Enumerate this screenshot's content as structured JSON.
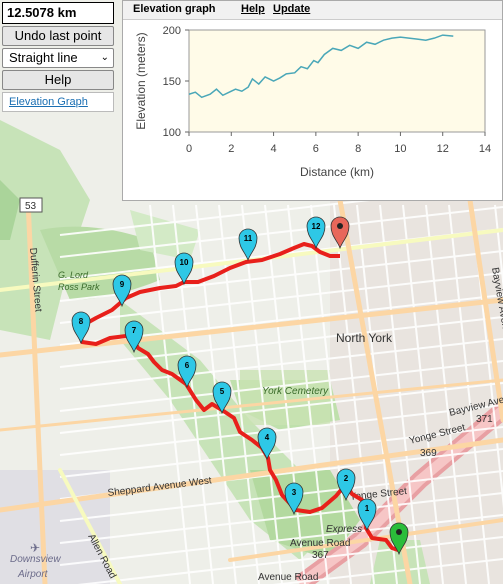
{
  "controls": {
    "distance": "12.5078 km",
    "undo_label": "Undo last point",
    "mode_value": "Straight line",
    "help_label": "Help",
    "elevation_link": "Elevation Graph"
  },
  "panel": {
    "title": "Elevation graph",
    "help_link": "Help",
    "update_link": "Update"
  },
  "map_labels": {
    "north_york": "North York",
    "york_cemetery": "York Cemetery",
    "yonge_street_1": "Yonge Street",
    "yonge_street_2": "Yonge Street",
    "route_369": "369",
    "bayview_avenue": "Bayview Avenue",
    "route_371": "371",
    "bayview_avenue_2": "Bayview Avenue",
    "dufferin": "Dufferin Street",
    "route_53": "53",
    "g_lord_ross_park": "G. Lord\nRoss Park",
    "sheppard": "Sheppard Avenue West",
    "allen_road": "Allen Road",
    "express": "Express",
    "avenue_road_367": "Avenue Road\n367",
    "avenue_road": "Avenue Road",
    "downsview_airport": "Downsview\nAirport"
  },
  "markers": [
    "1",
    "2",
    "3",
    "4",
    "5",
    "6",
    "7",
    "8",
    "9",
    "10",
    "11",
    "12"
  ],
  "colors": {
    "route": "#e8201b",
    "marker_cyan": "#2ec8e6",
    "marker_start": "#2bbd3a",
    "marker_end": "#e8675a",
    "elevation_line": "#4aa7b8"
  },
  "chart_data": {
    "type": "line",
    "xlabel": "Distance (km)",
    "ylabel": "Elevation (meters)",
    "xlim": [
      0,
      14
    ],
    "ylim": [
      100,
      200
    ],
    "xticks": [
      0,
      2,
      4,
      6,
      8,
      10,
      12,
      14
    ],
    "yticks": [
      100,
      150,
      200
    ],
    "x": [
      0.0,
      0.3,
      0.6,
      1.0,
      1.3,
      1.6,
      2.0,
      2.2,
      2.5,
      2.8,
      3.0,
      3.3,
      3.6,
      4.0,
      4.3,
      4.6,
      5.0,
      5.3,
      5.6,
      5.9,
      6.1,
      6.4,
      6.8,
      7.2,
      7.6,
      8.0,
      8.4,
      8.8,
      9.2,
      9.6,
      10.0,
      10.4,
      10.8,
      11.2,
      11.6,
      12.0,
      12.5
    ],
    "y": [
      137,
      139,
      134,
      137,
      142,
      136,
      140,
      142,
      140,
      144,
      152,
      147,
      154,
      150,
      153,
      157,
      158,
      164,
      162,
      170,
      168,
      176,
      182,
      180,
      185,
      182,
      188,
      186,
      190,
      192,
      193,
      192,
      191,
      190,
      192,
      195,
      194
    ]
  }
}
